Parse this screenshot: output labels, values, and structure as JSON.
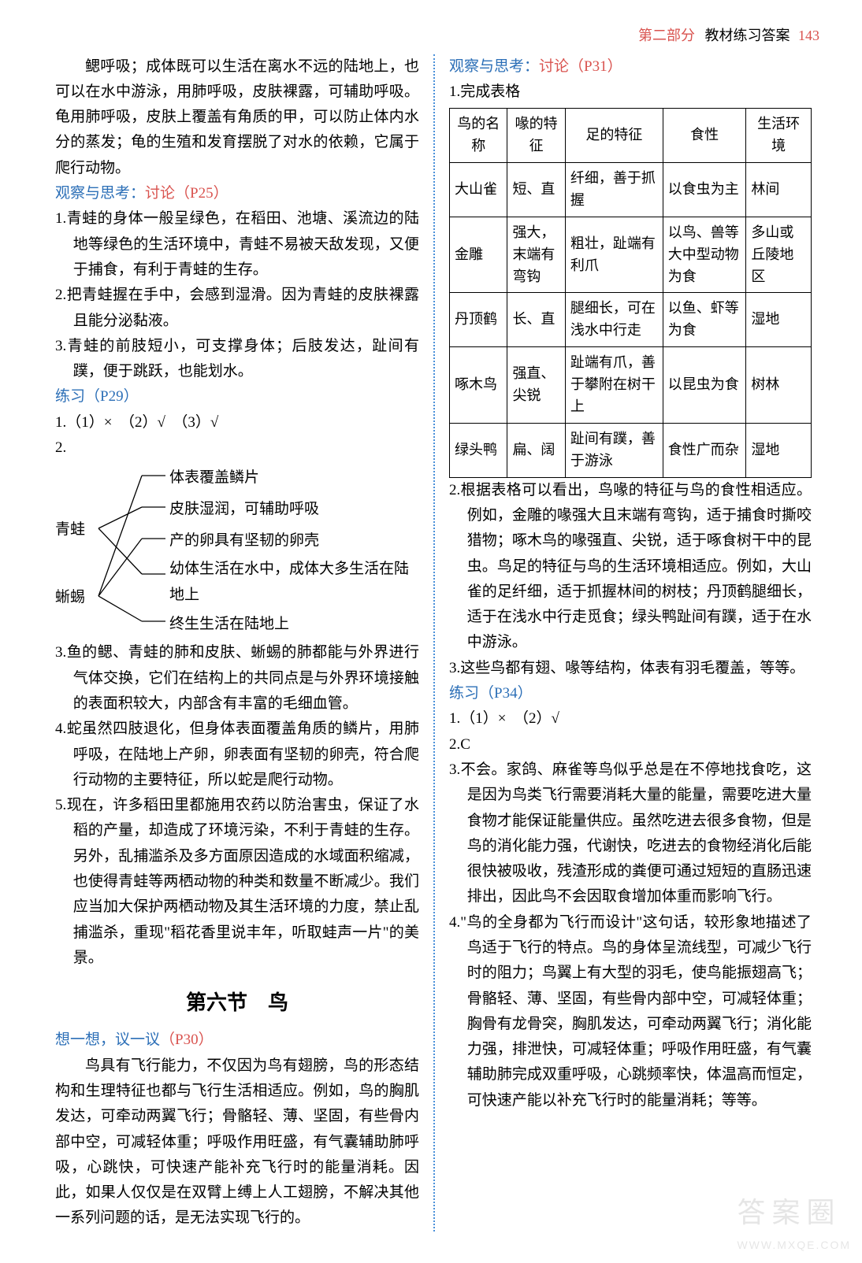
{
  "header": {
    "part": "第二部分",
    "sub": "教材练习答案",
    "page": "143"
  },
  "left": {
    "intro": "鳃呼吸；成体既可以生活在离水不远的陆地上，也可以在水中游泳，用肺呼吸，皮肤裸露，可辅助呼吸。龟用肺呼吸，皮肤上覆盖有角质的甲，可以防止体内水分的蒸发；龟的生殖和发育摆脱了对水的依赖，它属于爬行动物。",
    "obs25_head": "观察与思考：",
    "obs25_sub": "讨论（P25）",
    "obs25_1": "1.青蛙的身体一般呈绿色，在稻田、池塘、溪流边的陆地等绿色的生活环境中，青蛙不易被天敌发现，又便于捕食，有利于青蛙的生存。",
    "obs25_2": "2.把青蛙握在手中，会感到湿滑。因为青蛙的皮肤裸露且能分泌黏液。",
    "obs25_3": "3.青蛙的前肢短小，可支撑身体；后肢发达，趾间有蹼，便于跳跃，也能划水。",
    "p29_head": "练习（P29）",
    "p29_1": "1.（1）×　（2）√　（3）√",
    "p29_2_no": "2.",
    "conn": {
      "leftA": "青蛙",
      "leftB": "蜥蜴",
      "r1": "体表覆盖鳞片",
      "r2": "皮肤湿润，可辅助呼吸",
      "r3": "产的卵具有坚韧的卵壳",
      "r4": "幼体生活在水中，成体大多生活在陆地上",
      "r5": "终生生活在陆地上"
    },
    "q3": "3.鱼的鳃、青蛙的肺和皮肤、蜥蜴的肺都能与外界进行气体交换，它们在结构上的共同点是与外界环境接触的表面积较大，内部含有丰富的毛细血管。",
    "q4": "4.蛇虽然四肢退化，但身体表面覆盖角质的鳞片，用肺呼吸，在陆地上产卵，卵表面有坚韧的卵壳，符合爬行动物的主要特征，所以蛇是爬行动物。",
    "q5": "5.现在，许多稻田里都施用农药以防治害虫，保证了水稻的产量，却造成了环境污染，不利于青蛙的生存。另外，乱捕滥杀及多方面原因造成的水域面积缩减，也使得青蛙等两栖动物的种类和数量不断减少。我们应当加大保护两栖动物及其生活环境的力度，禁止乱捕滥杀，重现\"稻花香里说丰年，听取蛙声一片\"的美景。",
    "sec6": "第六节　鸟",
    "think_head": "想一想，议一议",
    "think_sub": "（P30）",
    "think_body": "鸟具有飞行能力，不仅因为鸟有翅膀，鸟的形态结构和生理特征也都与飞行生活相适应。例如，鸟的胸肌发达，可牵动两翼飞行；骨骼轻、薄、坚固，有些骨内部中空，可减轻体重；呼吸作用旺盛，有气囊辅助肺呼吸，心跳快，可快速产能补充飞行时的能量消耗。因此，如果人仅仅是在双臂上缚上人工翅膀，不解决其他一系列问题的话，是无法实现飞行的。"
  },
  "right": {
    "obs31_head": "观察与思考：",
    "obs31_sub": "讨论（P31）",
    "t1": "1.完成表格",
    "table": {
      "headers": [
        "鸟的名称",
        "喙的特征",
        "足的特征",
        "食性",
        "生活环境"
      ],
      "rows": [
        [
          "大山雀",
          "短、直",
          "纤细，善于抓握",
          "以食虫为主",
          "林间"
        ],
        [
          "金雕",
          "强大，末端有弯钩",
          "粗壮，趾端有利爪",
          "以鸟、兽等大中型动物为食",
          "多山或丘陵地区"
        ],
        [
          "丹顶鹤",
          "长、直",
          "腿细长，可在浅水中行走",
          "以鱼、虾等为食",
          "湿地"
        ],
        [
          "啄木鸟",
          "强直、尖锐",
          "趾端有爪，善于攀附在树干上",
          "以昆虫为食",
          "树林"
        ],
        [
          "绿头鸭",
          "扁、阔",
          "趾间有蹼，善于游泳",
          "食性广而杂",
          "湿地"
        ]
      ],
      "col_widths": [
        "16%",
        "16%",
        "27%",
        "23%",
        "18%"
      ]
    },
    "a2": "2.根据表格可以看出，鸟喙的特征与鸟的食性相适应。例如，金雕的喙强大且末端有弯钩，适于捕食时撕咬猎物；啄木鸟的喙强直、尖锐，适于啄食树干中的昆虫。鸟足的特征与鸟的生活环境相适应。例如，大山雀的足纤细，适于抓握林间的树枝；丹顶鹤腿细长，适于在浅水中行走觅食；绿头鸭趾间有蹼，适于在水中游泳。",
    "a3": "3.这些鸟都有翅、喙等结构，体表有羽毛覆盖，等等。",
    "p34_head": "练习（P34）",
    "p34_1": "1.（1）×　（2）√",
    "p34_2": "2.C",
    "p34_3": "3.不会。家鸽、麻雀等鸟似乎总是在不停地找食吃，这是因为鸟类飞行需要消耗大量的能量，需要吃进大量食物才能保证能量供应。虽然吃进去很多食物，但是鸟的消化能力强，代谢快，吃进去的食物经消化后能很快被吸收，残渣形成的粪便可通过短短的直肠迅速排出，因此鸟不会因取食增加体重而影响飞行。",
    "p34_4": "4.\"鸟的全身都为飞行而设计\"这句话，较形象地描述了鸟适于飞行的特点。鸟的身体呈流线型，可减少飞行时的阻力；鸟翼上有大型的羽毛，使鸟能振翅高飞；骨骼轻、薄、坚固，有些骨内部中空，可减轻体重；胸骨有龙骨突，胸肌发达，可牵动两翼飞行；消化能力强，排泄快，可减轻体重；呼吸作用旺盛，有气囊辅助肺完成双重呼吸，心跳频率快，体温高而恒定，可快速产能以补充飞行时的能量消耗；等等。"
  },
  "watermark": {
    "main": "答案圈",
    "sub": "WWW.MXQE.COM"
  }
}
